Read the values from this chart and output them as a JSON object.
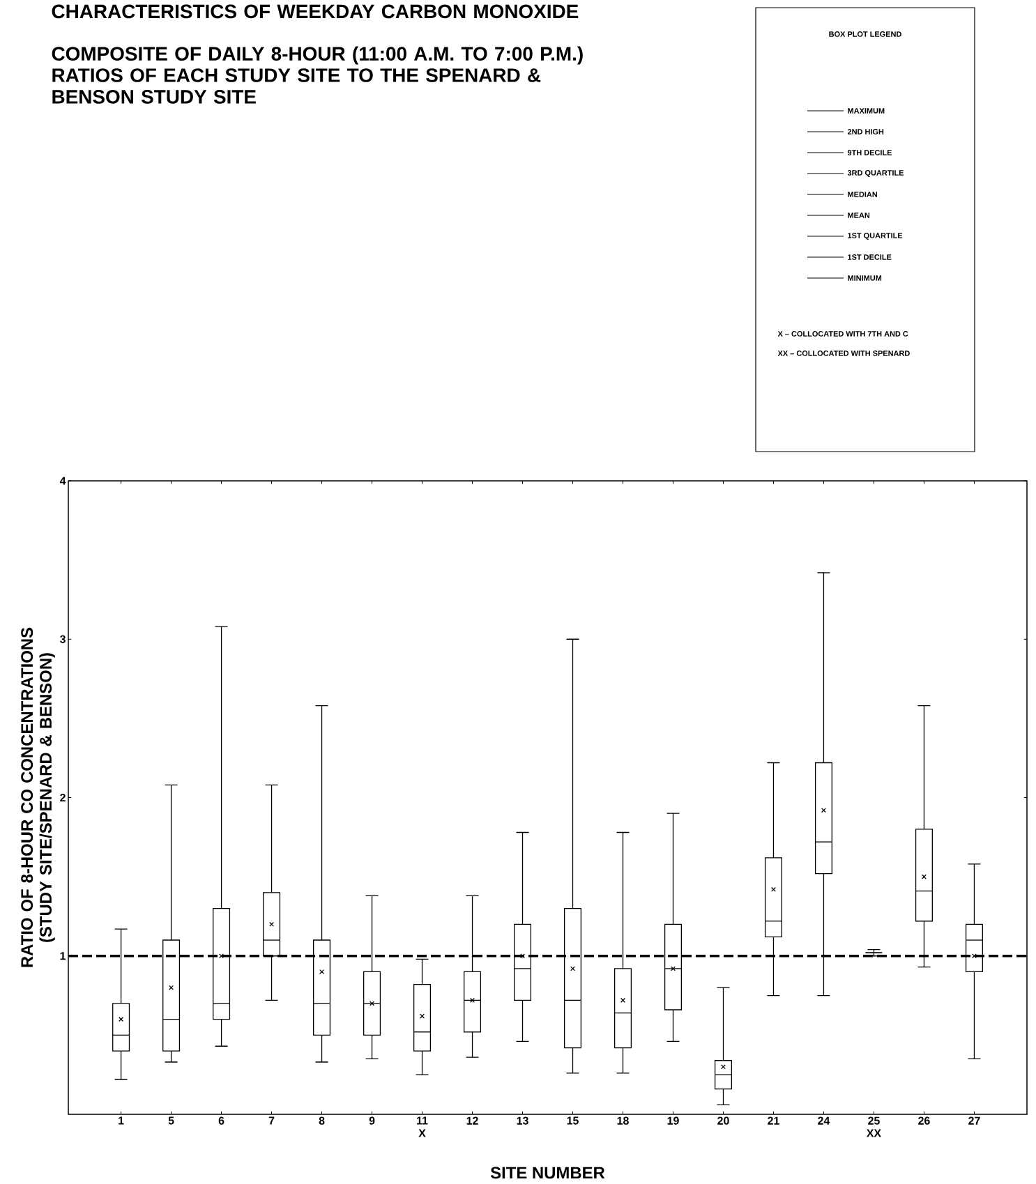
{
  "chart_data": {
    "type": "box",
    "title": "CHARACTERISTICS OF WEEKDAY CARBON MONOXIDE",
    "subtitle": "COMPOSITE OF DAILY 8-HOUR (11:00 A.M. TO 7:00 P.M.) RATIOS OF EACH STUDY SITE TO THE SPENARD & BENSON STUDY SITE",
    "xlabel": "SITE NUMBER",
    "ylabel": "RATIO OF 8-HOUR CO CONCENTRATIONS (STUDY SITE/SPENARD & BENSON)",
    "categories": [
      "1",
      "5",
      "6",
      "7",
      "8",
      "9",
      "11 X",
      "12",
      "13",
      "15",
      "18",
      "19",
      "20",
      "21",
      "24",
      "25 XX",
      "26",
      "27"
    ],
    "boxes": [
      {
        "low": 0.22,
        "q1": 0.4,
        "median": 0.5,
        "q3": 0.7,
        "high": 1.17,
        "mean": 0.6
      },
      {
        "low": 0.33,
        "q1": 0.4,
        "median": 0.6,
        "q3": 1.1,
        "high": 2.08,
        "mean": 0.8
      },
      {
        "low": 0.43,
        "q1": 0.6,
        "median": 0.7,
        "q3": 1.3,
        "high": 3.08,
        "mean": 1.0
      },
      {
        "low": 0.72,
        "q1": 1.0,
        "median": 1.1,
        "q3": 1.4,
        "high": 2.08,
        "mean": 1.2
      },
      {
        "low": 0.33,
        "q1": 0.5,
        "median": 0.7,
        "q3": 1.1,
        "high": 2.58,
        "mean": 0.9
      },
      {
        "low": 0.35,
        "q1": 0.5,
        "median": 0.7,
        "q3": 0.9,
        "high": 1.38,
        "mean": 0.7
      },
      {
        "low": 0.25,
        "q1": 0.4,
        "median": 0.52,
        "q3": 0.82,
        "high": 0.98,
        "mean": 0.62
      },
      {
        "low": 0.36,
        "q1": 0.52,
        "median": 0.72,
        "q3": 0.9,
        "high": 1.38,
        "mean": 0.72
      },
      {
        "low": 0.46,
        "q1": 0.72,
        "median": 0.92,
        "q3": 1.2,
        "high": 1.78,
        "mean": 1.0
      },
      {
        "low": 0.26,
        "q1": 0.42,
        "median": 0.72,
        "q3": 1.3,
        "high": 3.0,
        "mean": 0.92
      },
      {
        "low": 0.26,
        "q1": 0.42,
        "median": 0.64,
        "q3": 0.92,
        "high": 1.78,
        "mean": 0.72
      },
      {
        "low": 0.46,
        "q1": 0.66,
        "median": 0.92,
        "q3": 1.2,
        "high": 1.9,
        "mean": 0.92
      },
      {
        "low": 0.06,
        "q1": 0.16,
        "median": 0.25,
        "q3": 0.34,
        "high": 0.8,
        "mean": 0.3
      },
      {
        "low": 0.75,
        "q1": 1.12,
        "median": 1.22,
        "q3": 1.62,
        "high": 2.22,
        "mean": 1.42
      },
      {
        "low": 0.75,
        "q1": 1.52,
        "median": 1.72,
        "q3": 2.22,
        "high": 3.42,
        "mean": 1.92
      },
      {
        "low": 1.0,
        "q1": 1.02,
        "median": 1.02,
        "q3": 1.02,
        "high": 1.04
      },
      {
        "low": 0.93,
        "q1": 1.22,
        "median": 1.41,
        "q3": 1.8,
        "high": 2.58,
        "mean": 1.5
      },
      {
        "low": 0.35,
        "q1": 0.9,
        "median": 1.1,
        "q3": 1.2,
        "high": 1.58,
        "mean": 1.0
      }
    ],
    "ylim": [
      0,
      4
    ],
    "yticks": [
      1,
      2,
      3,
      4
    ],
    "ref_lines": [
      {
        "axis": "y",
        "value": 1,
        "line_style": "dashed",
        "color": "#000000"
      }
    ],
    "annotations": [
      "BOX PLOT LEGEND",
      "MAXIMUM",
      "2ND HIGH",
      "9TH DECILE",
      "3RD QUARTILE",
      "MEDIAN",
      "MEAN",
      "1ST QUARTILE",
      "1ST DECILE",
      "MINIMUM",
      "X – COLLOCATED WITH 7TH AND C",
      "XX – COLLOCATED WITH SPENARD"
    ]
  }
}
